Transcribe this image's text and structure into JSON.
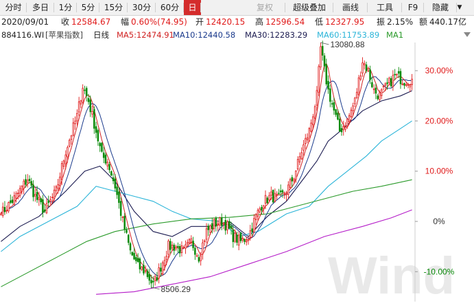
{
  "toolbar": {
    "buttons": [
      {
        "label": "分时",
        "state": "normal"
      },
      {
        "label": "多日",
        "state": "normal"
      },
      {
        "label": "1分",
        "state": "normal"
      },
      {
        "label": "5分",
        "state": "normal"
      },
      {
        "label": "15分",
        "state": "normal"
      },
      {
        "label": "30分",
        "state": "normal"
      },
      {
        "label": "60分",
        "state": "normal"
      },
      {
        "label": "日",
        "state": "active"
      },
      {
        "label": "复权",
        "state": "disabled"
      },
      {
        "label": "超级叠加",
        "state": "normal"
      },
      {
        "label": "画线",
        "state": "normal"
      },
      {
        "label": "工具",
        "state": "normal"
      },
      {
        "label": "F9",
        "state": "normal"
      },
      {
        "label": "隐藏",
        "state": "normal"
      }
    ],
    "chevron_icon": "chevron-down-icon"
  },
  "quote": {
    "date": "2020/09/01",
    "close_label": "收",
    "close": "12584.67",
    "change_label": "幅",
    "change": "0.60%(74.95)",
    "open_label": "开",
    "open": "12420.15",
    "high_label": "高",
    "high": "12596.54",
    "low_label": "低",
    "low": "12327.95",
    "amplitude_label": "振",
    "amplitude": "2.15%",
    "amount_label": "额",
    "amount": "440.17亿"
  },
  "legend": {
    "code": "884116.WI",
    "name": "[苹果指数]",
    "period": "日线",
    "ma5": "MA5:12474.91",
    "ma10": "MA10:12440.58",
    "ma30": "MA30:12283.29",
    "ma60": "MA60:11753.89",
    "ma120": "MA1",
    "dropdown_icon": "triangle-down-icon"
  },
  "colors": {
    "up": "#e01a1a",
    "down": "#0a8a0a",
    "ma5": "#d02020",
    "ma10": "#1a3a8c",
    "ma30": "#1a1a50",
    "ma60": "#2ab4d8",
    "ma120": "#2a9a2a",
    "ma250": "#b41ac8"
  },
  "watermark": "Wind",
  "chart_data": {
    "type": "candlestick",
    "y_axis": {
      "position": "right",
      "ticks": [
        "30.00%",
        "20.00%",
        "10.00%",
        "0%",
        "-10.00%"
      ],
      "tick_values": [
        30,
        20,
        10,
        0,
        -10
      ],
      "ylim": [
        -14,
        34
      ]
    },
    "max_label": "13080.88",
    "min_label": "8506.29",
    "max_pct": 34.5,
    "min_pct": -12.7,
    "start_pct": 1.5,
    "end_pct": 28.3,
    "grid": false,
    "waypoints": [
      [
        0,
        1.5
      ],
      [
        8,
        5
      ],
      [
        14,
        8.5
      ],
      [
        18,
        5
      ],
      [
        23,
        2
      ],
      [
        29,
        6
      ],
      [
        34,
        14
      ],
      [
        40,
        21
      ],
      [
        43,
        27
      ],
      [
        46,
        24
      ],
      [
        50,
        18
      ],
      [
        53,
        13
      ],
      [
        56,
        12
      ],
      [
        60,
        7
      ],
      [
        64,
        0
      ],
      [
        68,
        -6
      ],
      [
        72,
        -9
      ],
      [
        76,
        -10
      ],
      [
        80,
        -12.7
      ],
      [
        84,
        -9
      ],
      [
        88,
        -5
      ],
      [
        92,
        -5
      ],
      [
        96,
        -6
      ],
      [
        100,
        -4
      ],
      [
        104,
        -7
      ],
      [
        108,
        -2
      ],
      [
        112,
        -0.5
      ],
      [
        116,
        0
      ],
      [
        119,
        -1
      ],
      [
        122,
        -3
      ],
      [
        126,
        -4
      ],
      [
        130,
        -3
      ],
      [
        134,
        1
      ],
      [
        138,
        4
      ],
      [
        142,
        5
      ],
      [
        146,
        4.5
      ],
      [
        150,
        6
      ],
      [
        154,
        9
      ],
      [
        158,
        14
      ],
      [
        162,
        18
      ],
      [
        166,
        25
      ],
      [
        168,
        34.5
      ],
      [
        170,
        30
      ],
      [
        172,
        26
      ],
      [
        175,
        22
      ],
      [
        178,
        18
      ],
      [
        182,
        20
      ],
      [
        186,
        24
      ],
      [
        190,
        32
      ],
      [
        193,
        30
      ],
      [
        196,
        26
      ],
      [
        199,
        25
      ],
      [
        203,
        27
      ],
      [
        207,
        29
      ],
      [
        212,
        28
      ],
      [
        216,
        28.3
      ]
    ],
    "ma_overlays": [
      {
        "name": "MA30",
        "points": [
          [
            0,
            -4
          ],
          [
            10,
            -1
          ],
          [
            20,
            1
          ],
          [
            34,
            6
          ],
          [
            44,
            10
          ],
          [
            52,
            11
          ],
          [
            60,
            8
          ],
          [
            70,
            2
          ],
          [
            80,
            -2
          ],
          [
            90,
            -3
          ],
          [
            100,
            -1
          ],
          [
            110,
            -1
          ],
          [
            120,
            0
          ],
          [
            130,
            -3
          ],
          [
            140,
            1
          ],
          [
            150,
            4
          ],
          [
            160,
            9
          ],
          [
            166,
            12
          ],
          [
            172,
            16
          ],
          [
            180,
            18.5
          ],
          [
            190,
            22
          ],
          [
            200,
            24
          ],
          [
            210,
            25
          ],
          [
            216,
            26
          ]
        ]
      },
      {
        "name": "MA60",
        "points": [
          [
            0,
            -6
          ],
          [
            10,
            -3
          ],
          [
            25,
            0
          ],
          [
            40,
            3
          ],
          [
            50,
            7
          ],
          [
            60,
            6
          ],
          [
            70,
            5
          ],
          [
            80,
            4
          ],
          [
            90,
            2
          ],
          [
            100,
            0.5
          ],
          [
            115,
            0
          ],
          [
            125,
            -3
          ],
          [
            135,
            -2
          ],
          [
            150,
            1.5
          ],
          [
            162,
            3
          ],
          [
            172,
            7
          ],
          [
            182,
            10
          ],
          [
            192,
            13
          ],
          [
            200,
            16
          ],
          [
            210,
            18.5
          ],
          [
            216,
            20
          ]
        ]
      },
      {
        "name": "MA120",
        "points": [
          [
            0,
            -13
          ],
          [
            15,
            -10
          ],
          [
            30,
            -7
          ],
          [
            45,
            -4
          ],
          [
            60,
            -2
          ],
          [
            80,
            -0.5
          ],
          [
            100,
            0.5
          ],
          [
            120,
            0.8
          ],
          [
            140,
            1.5
          ],
          [
            155,
            3
          ],
          [
            170,
            4.5
          ],
          [
            185,
            6
          ],
          [
            200,
            7
          ],
          [
            216,
            8.3
          ]
        ]
      },
      {
        "name": "MA250",
        "points": [
          [
            50,
            -14.5
          ],
          [
            70,
            -14
          ],
          [
            90,
            -12.5
          ],
          [
            110,
            -11
          ],
          [
            130,
            -8.5
          ],
          [
            150,
            -6
          ],
          [
            170,
            -3
          ],
          [
            190,
            -1
          ],
          [
            205,
            0.7
          ],
          [
            216,
            2.3
          ]
        ]
      }
    ]
  }
}
